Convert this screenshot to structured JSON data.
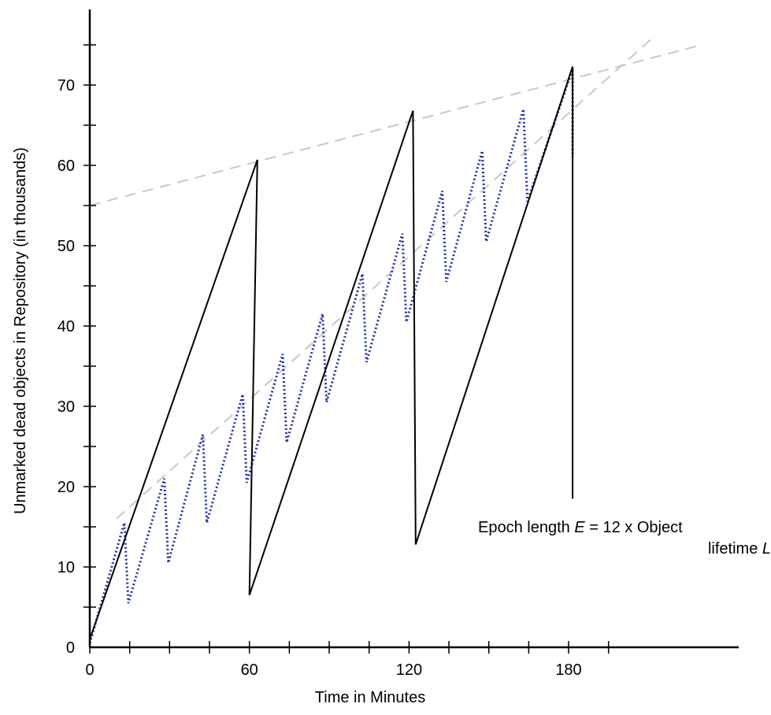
{
  "chart_data": {
    "type": "line",
    "title": "",
    "xlabel": "Time in Minutes",
    "ylabel": "Unmarked dead objects in Repository (in thousands)",
    "xlim": [
      0,
      215
    ],
    "ylim": [
      0,
      78
    ],
    "x_ticks": [
      0,
      60,
      120,
      180
    ],
    "x_minor_ticks": [
      15,
      30,
      45,
      75,
      90,
      105,
      135,
      150,
      165,
      195
    ],
    "y_ticks": [
      0,
      10,
      20,
      30,
      40,
      50,
      60,
      70
    ],
    "y_minor_ticks": [
      5,
      15,
      25,
      35,
      45,
      55,
      65,
      75
    ],
    "grid": false,
    "legend": "none",
    "series": [
      {
        "style": "solid",
        "color": "#000000",
        "points": [
          [
            0,
            1
          ],
          [
            63,
            60.7
          ],
          [
            60,
            6.5
          ],
          [
            121.5,
            66.8
          ],
          [
            122.5,
            12.8
          ],
          [
            181.5,
            72.3
          ],
          [
            181.5,
            18.5
          ]
        ]
      },
      {
        "style": "dotted",
        "color": "#1f2fa8",
        "points": [
          [
            0,
            0.5
          ],
          [
            13,
            15.5
          ],
          [
            14.5,
            5.5
          ],
          [
            28,
            21
          ],
          [
            29.5,
            10.5
          ],
          [
            42.5,
            26.5
          ],
          [
            44,
            15.5
          ],
          [
            57.5,
            31.5
          ],
          [
            59,
            20.5
          ],
          [
            72.5,
            36.5
          ],
          [
            74,
            25.5
          ],
          [
            87.5,
            41.5
          ],
          [
            89,
            30.5
          ],
          [
            102.5,
            46.5
          ],
          [
            104,
            35.5
          ],
          [
            117.5,
            51.5
          ],
          [
            119,
            40.5
          ],
          [
            132.5,
            56.8
          ],
          [
            134,
            45.5
          ],
          [
            147.5,
            61.8
          ],
          [
            149,
            50.5
          ],
          [
            163,
            67
          ],
          [
            164.5,
            55.5
          ],
          [
            181.5,
            72
          ],
          [
            181.5,
            61
          ]
        ]
      },
      {
        "style": "dashed",
        "color": "#c8c8c8",
        "points": [
          [
            0,
            55
          ],
          [
            230,
            75
          ]
        ]
      },
      {
        "style": "dashed",
        "color": "#c8c8c8",
        "points": [
          [
            10,
            16
          ],
          [
            212,
            76
          ]
        ]
      }
    ],
    "annotations": [
      {
        "line1": "Epoch length E = 12 x Object",
        "line2": "lifetime L",
        "x": 181,
        "y": 14
      }
    ]
  },
  "annotation_parts": {
    "prefix": "Epoch length ",
    "var_e": "E",
    "middle": " = 12 x Object",
    "line2_prefix": "lifetime ",
    "var_l": "L"
  }
}
